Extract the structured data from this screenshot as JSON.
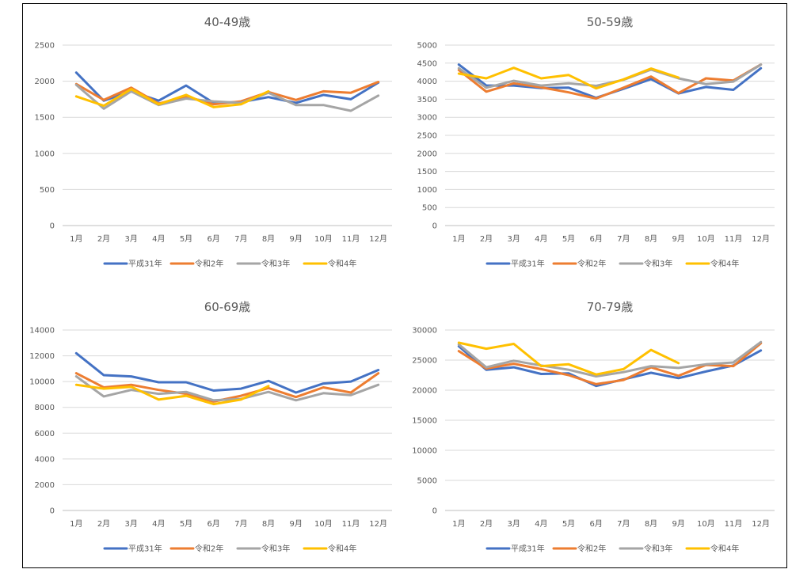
{
  "legend_names": [
    "平成31年",
    "令和2年",
    "令和3年",
    "令和4年"
  ],
  "series_colors": [
    "#4472C4",
    "#ED7D31",
    "#A5A5A5",
    "#FFC000"
  ],
  "chart_data": [
    {
      "type": "line",
      "title": "40-49歳",
      "categories": [
        "1月",
        "2月",
        "3月",
        "4月",
        "5月",
        "6月",
        "7月",
        "8月",
        "9月",
        "10月",
        "11月",
        "12月"
      ],
      "ylim": [
        0,
        2500
      ],
      "yticks": [
        0,
        500,
        1000,
        1500,
        2000,
        2500
      ],
      "grid": true,
      "legend": "bottom",
      "series": [
        {
          "name": "平成31年",
          "values": [
            2120,
            1730,
            1860,
            1730,
            1940,
            1700,
            1710,
            1780,
            1700,
            1810,
            1750,
            1980
          ]
        },
        {
          "name": "令和2年",
          "values": [
            1960,
            1740,
            1910,
            1690,
            1790,
            1680,
            1720,
            1850,
            1740,
            1860,
            1840,
            1990
          ]
        },
        {
          "name": "令和3年",
          "values": [
            1950,
            1620,
            1860,
            1670,
            1760,
            1720,
            1700,
            1840,
            1670,
            1670,
            1590,
            1800
          ]
        },
        {
          "name": "令和4年",
          "values": [
            1790,
            1660,
            1890,
            1680,
            1810,
            1640,
            1680,
            1860,
            null,
            null,
            null,
            null
          ]
        }
      ]
    },
    {
      "type": "line",
      "title": "50-59歳",
      "categories": [
        "1月",
        "2月",
        "3月",
        "4月",
        "5月",
        "6月",
        "7月",
        "8月",
        "9月",
        "10月",
        "11月",
        "12月"
      ],
      "ylim": [
        0,
        5000
      ],
      "yticks": [
        0,
        500,
        1000,
        1500,
        2000,
        2500,
        3000,
        3500,
        4000,
        4500,
        5000
      ],
      "grid": true,
      "legend": "bottom",
      "series": [
        {
          "name": "平成31年",
          "values": [
            4460,
            3880,
            3880,
            3810,
            3820,
            3540,
            3790,
            4060,
            3660,
            3840,
            3760,
            4360
          ]
        },
        {
          "name": "令和2年",
          "values": [
            4310,
            3710,
            3940,
            3830,
            3690,
            3520,
            3820,
            4130,
            3670,
            4080,
            4020,
            4460
          ]
        },
        {
          "name": "令和3年",
          "values": [
            4360,
            3820,
            4010,
            3880,
            3940,
            3870,
            4040,
            4320,
            4080,
            3920,
            3990,
            4460
          ]
        },
        {
          "name": "令和4年",
          "values": [
            4210,
            4080,
            4370,
            4080,
            4170,
            3800,
            4050,
            4350,
            4100,
            null,
            null,
            null
          ]
        }
      ]
    },
    {
      "type": "line",
      "title": "60-69歳",
      "categories": [
        "1月",
        "2月",
        "3月",
        "4月",
        "5月",
        "6月",
        "7月",
        "8月",
        "9月",
        "10月",
        "11月",
        "12月"
      ],
      "ylim": [
        0,
        14000
      ],
      "yticks": [
        0,
        2000,
        4000,
        6000,
        8000,
        10000,
        12000,
        14000
      ],
      "grid": true,
      "legend": "bottom",
      "series": [
        {
          "name": "平成31年",
          "values": [
            12200,
            10500,
            10400,
            9950,
            9950,
            9300,
            9450,
            10050,
            9150,
            9850,
            10000,
            10900
          ]
        },
        {
          "name": "令和2年",
          "values": [
            10650,
            9550,
            9750,
            9350,
            9050,
            8450,
            8900,
            9500,
            8800,
            9550,
            9150,
            10650
          ]
        },
        {
          "name": "令和3年",
          "values": [
            10400,
            8850,
            9350,
            9050,
            9200,
            8550,
            8650,
            9200,
            8550,
            9100,
            8950,
            9750
          ]
        },
        {
          "name": "令和4年",
          "values": [
            9750,
            9450,
            9600,
            8600,
            8900,
            8250,
            8600,
            9650,
            null,
            null,
            null,
            null
          ]
        }
      ]
    },
    {
      "type": "line",
      "title": "70-79歳",
      "categories": [
        "1月",
        "2月",
        "3月",
        "4月",
        "5月",
        "6月",
        "7月",
        "8月",
        "9月",
        "10月",
        "11月",
        "12月"
      ],
      "ylim": [
        0,
        30000
      ],
      "yticks": [
        0,
        5000,
        10000,
        15000,
        20000,
        25000,
        30000
      ],
      "grid": true,
      "legend": "bottom",
      "series": [
        {
          "name": "平成31年",
          "values": [
            27300,
            23400,
            23800,
            22700,
            22800,
            20700,
            21800,
            22900,
            22000,
            23100,
            24100,
            26600
          ]
        },
        {
          "name": "令和2年",
          "values": [
            26500,
            23600,
            24400,
            23500,
            22500,
            21000,
            21700,
            23800,
            22400,
            24200,
            24000,
            27800
          ]
        },
        {
          "name": "令和3年",
          "values": [
            27600,
            23800,
            24900,
            24100,
            23400,
            22300,
            23000,
            24000,
            23700,
            24300,
            24600,
            28000
          ]
        },
        {
          "name": "令和4年",
          "values": [
            27900,
            26900,
            27700,
            24000,
            24300,
            22600,
            23500,
            26700,
            24500,
            null,
            null,
            null
          ]
        }
      ]
    }
  ]
}
